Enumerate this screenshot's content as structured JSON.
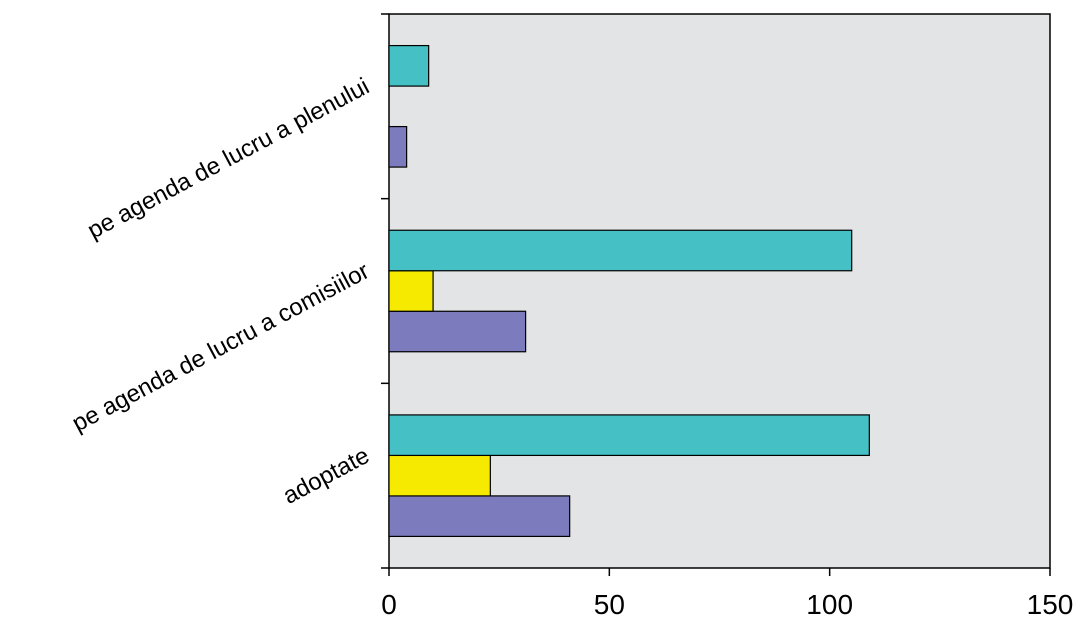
{
  "chart_data": {
    "type": "bar",
    "orientation": "horizontal",
    "categories": [
      "adoptate",
      "pe agenda de lucru a comisiilor",
      "pe agenda de lucru a plenului"
    ],
    "series": [
      {
        "color": "#7b7bbd",
        "values": [
          41,
          31,
          4
        ]
      },
      {
        "color": "#f5ea00",
        "values": [
          23,
          10,
          0
        ]
      },
      {
        "color": "#45c0c4",
        "values": [
          109,
          105,
          9
        ]
      }
    ],
    "xlim": [
      0,
      150
    ],
    "xticks": [
      0,
      50,
      100,
      150
    ],
    "xtick_labels": [
      "0",
      "50",
      "100",
      "150"
    ],
    "grid": false,
    "legend": "none",
    "plot_background": "#e3e4e5"
  }
}
